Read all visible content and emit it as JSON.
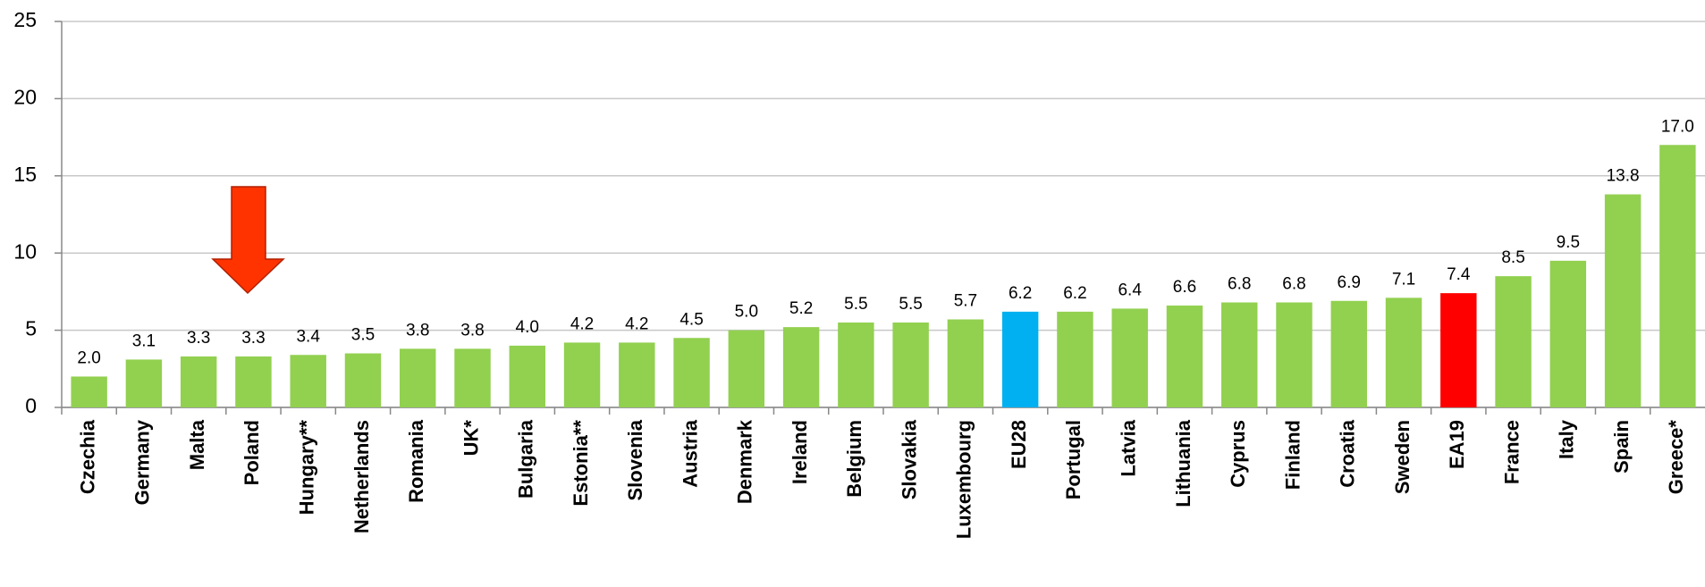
{
  "chart_data": {
    "type": "bar",
    "categories": [
      "Czechia",
      "Germany",
      "Malta",
      "Poland",
      "Hungary**",
      "Netherlands",
      "Romania",
      "UK*",
      "Bulgaria",
      "Estonia**",
      "Slovenia",
      "Austria",
      "Denmark",
      "Ireland",
      "Belgium",
      "Slovakia",
      "Luxembourg",
      "EU28",
      "Portugal",
      "Latvia",
      "Lithuania",
      "Cyprus",
      "Finland",
      "Croatia",
      "Sweden",
      "EA19",
      "France",
      "Italy",
      "Spain",
      "Greece*"
    ],
    "values": [
      2.0,
      3.1,
      3.3,
      3.3,
      3.4,
      3.5,
      3.8,
      3.8,
      4.0,
      4.2,
      4.2,
      4.5,
      5.0,
      5.2,
      5.5,
      5.5,
      5.7,
      6.2,
      6.2,
      6.4,
      6.6,
      6.8,
      6.8,
      6.9,
      7.1,
      7.4,
      8.5,
      9.5,
      13.8,
      17.0
    ],
    "value_labels": [
      "2.0",
      "3.1",
      "3.3",
      "3.3",
      "3.4",
      "3.5",
      "3.8",
      "3.8",
      "4.0",
      "4.2",
      "4.2",
      "4.5",
      "5.0",
      "5.2",
      "5.5",
      "5.5",
      "5.7",
      "6.2",
      "6.2",
      "6.4",
      "6.6",
      "6.8",
      "6.8",
      "6.9",
      "7.1",
      "7.4",
      "8.5",
      "9.5",
      "13.8",
      "17.0"
    ],
    "colors": [
      "#92d050",
      "#92d050",
      "#92d050",
      "#92d050",
      "#92d050",
      "#92d050",
      "#92d050",
      "#92d050",
      "#92d050",
      "#92d050",
      "#92d050",
      "#92d050",
      "#92d050",
      "#92d050",
      "#92d050",
      "#92d050",
      "#92d050",
      "#00b0f0",
      "#92d050",
      "#92d050",
      "#92d050",
      "#92d050",
      "#92d050",
      "#92d050",
      "#92d050",
      "#ff0000",
      "#92d050",
      "#92d050",
      "#92d050",
      "#92d050"
    ],
    "ylim": [
      0,
      25
    ],
    "yticks": [
      0,
      5,
      10,
      15,
      20,
      25
    ],
    "grid": true
  }
}
